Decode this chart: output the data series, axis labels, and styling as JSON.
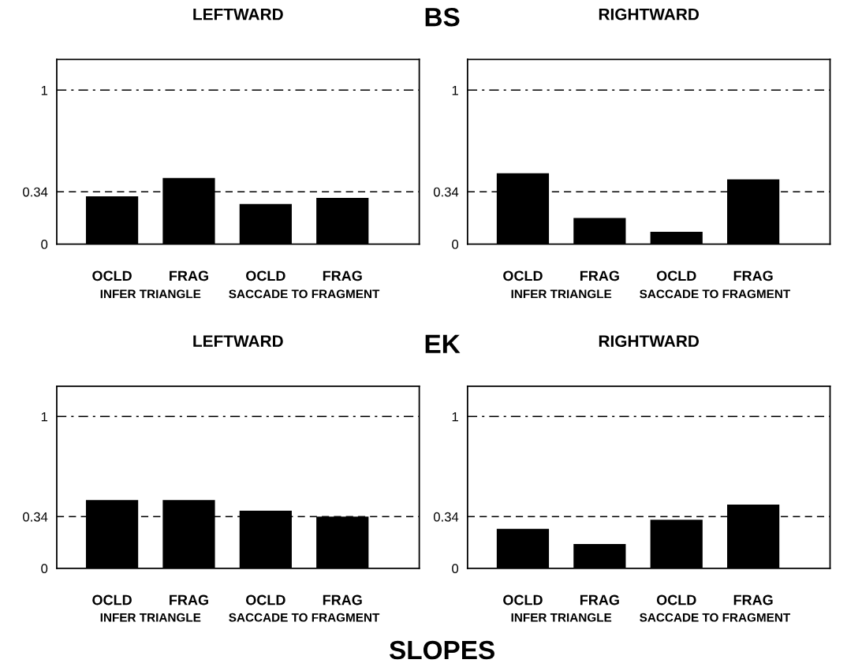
{
  "chart_data": [
    {
      "type": "bar",
      "title": "LEFTWARD",
      "categories": [
        "OCLD",
        "FRAG",
        "OCLD",
        "FRAG"
      ],
      "values": [
        0.31,
        0.43,
        0.26,
        0.3
      ],
      "color": "#000000",
      "ylim": [
        0,
        1.2
      ],
      "yticks": [
        0,
        0.34,
        1
      ],
      "grid": false,
      "legend": false,
      "annotations": [
        "INFER TRIANGLE",
        "SACCADE TO FRAGMENT",
        "BS"
      ],
      "ref_lines": [
        {
          "axis": "y",
          "value": 1,
          "line_style": "dashdot",
          "color": "#000000"
        },
        {
          "axis": "y",
          "value": 0.34,
          "line_style": "dashed",
          "color": "#000000"
        }
      ]
    },
    {
      "type": "bar",
      "title": "RIGHTWARD",
      "categories": [
        "OCLD",
        "FRAG",
        "OCLD",
        "FRAG"
      ],
      "values": [
        0.46,
        0.17,
        0.08,
        0.42
      ],
      "color": "#000000",
      "ylim": [
        0,
        1.2
      ],
      "yticks": [
        0,
        0.34,
        1
      ],
      "grid": false,
      "legend": false,
      "annotations": [
        "INFER TRIANGLE",
        "SACCADE TO FRAGMENT"
      ],
      "ref_lines": [
        {
          "axis": "y",
          "value": 1,
          "line_style": "dashdot",
          "color": "#000000"
        },
        {
          "axis": "y",
          "value": 0.34,
          "line_style": "dashed",
          "color": "#000000"
        }
      ]
    },
    {
      "type": "bar",
      "title": "LEFTWARD",
      "categories": [
        "OCLD",
        "FRAG",
        "OCLD",
        "FRAG"
      ],
      "values": [
        0.45,
        0.45,
        0.38,
        0.34
      ],
      "color": "#000000",
      "ylim": [
        0,
        1.2
      ],
      "yticks": [
        0,
        0.34,
        1
      ],
      "grid": false,
      "legend": false,
      "annotations": [
        "INFER TRIANGLE",
        "SACCADE TO FRAGMENT",
        "EK",
        "SLOPES"
      ],
      "ref_lines": [
        {
          "axis": "y",
          "value": 1,
          "line_style": "dashdot",
          "color": "#000000"
        },
        {
          "axis": "y",
          "value": 0.34,
          "line_style": "dashed",
          "color": "#000000"
        }
      ]
    },
    {
      "type": "bar",
      "title": "RIGHTWARD",
      "categories": [
        "OCLD",
        "FRAG",
        "OCLD",
        "FRAG"
      ],
      "values": [
        0.26,
        0.16,
        0.32,
        0.42
      ],
      "color": "#000000",
      "ylim": [
        0,
        1.2
      ],
      "yticks": [
        0,
        0.34,
        1
      ],
      "grid": false,
      "legend": false,
      "annotations": [
        "INFER TRIANGLE",
        "SACCADE TO FRAGMENT"
      ],
      "ref_lines": [
        {
          "axis": "y",
          "value": 1,
          "line_style": "dashdot",
          "color": "#000000"
        },
        {
          "axis": "y",
          "value": 0.34,
          "line_style": "dashed",
          "color": "#000000"
        }
      ]
    }
  ]
}
